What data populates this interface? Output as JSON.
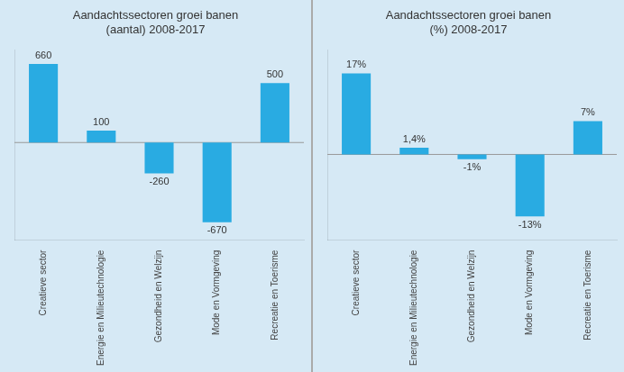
{
  "chart_data": [
    {
      "type": "bar",
      "title": "Aandachtssectoren groei banen\n(aantal) 2008-2017",
      "categories": [
        "Creatieve sector",
        "Energie en Milieutechnologie",
        "Gezondheid en Welzijn",
        "Mode en Vormgeving",
        "Recreatie en Toerisme"
      ],
      "values": [
        660,
        100,
        -260,
        -670,
        500
      ],
      "color": "#29ABE2",
      "ylim": [
        -820,
        780
      ],
      "data_labels": true,
      "grid": false,
      "tick_labels": "x"
    },
    {
      "type": "bar",
      "title": "Aandachtssectoren groei banen\n(%) 2008-2017",
      "categories": [
        "Creatieve sector",
        "Energie en Milieutechnologie",
        "Gezondheid en Welzijn",
        "Mode en Vormgeving",
        "Recreatie en Toerisme"
      ],
      "values": [
        17,
        1.4,
        -1,
        -13,
        7
      ],
      "value_labels": [
        "17%",
        "1,4%",
        "-1%",
        "-13%",
        "7%"
      ],
      "color": "#29ABE2",
      "ylim": [
        -18,
        22
      ],
      "data_labels": true,
      "grid": false,
      "tick_labels": "x"
    }
  ]
}
